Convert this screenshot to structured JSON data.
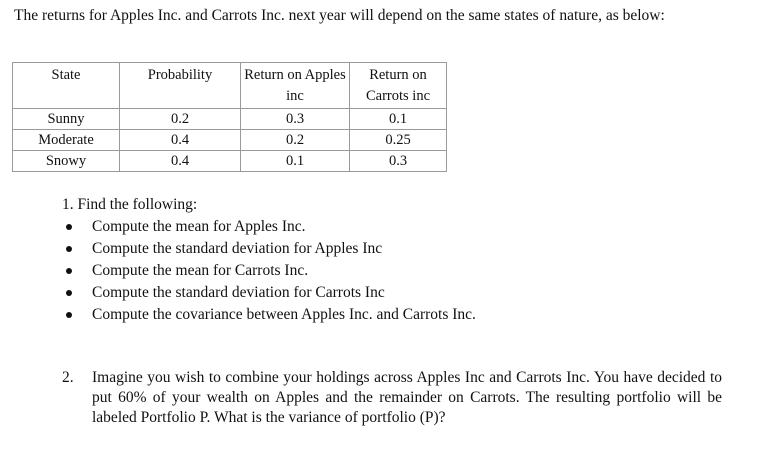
{
  "intro": "The returns for Apples Inc. and Carrots Inc. next year will depend on the same states of nature, as below:",
  "table": {
    "headers": [
      "State",
      "Probability",
      "Return on Apples inc",
      "Return on Carrots inc"
    ],
    "rows": [
      [
        "Sunny",
        "0.2",
        "0.3",
        "0.1"
      ],
      [
        "Moderate",
        "0.4",
        "0.2",
        "0.25"
      ],
      [
        "Snowy",
        "0.4",
        "0.1",
        "0.3"
      ]
    ]
  },
  "question1": {
    "title": "1. Find the following:",
    "items": [
      "Compute the mean for Apples Inc.",
      "Compute the standard deviation for Apples Inc",
      "Compute the mean for Carrots Inc.",
      "Compute the standard deviation for Carrots Inc",
      "Compute the covariance between Apples Inc. and Carrots Inc."
    ]
  },
  "question2": {
    "number": "2.",
    "text": "Imagine you wish to combine your holdings across Apples Inc and Carrots Inc. You have decided to put 60% of your wealth on Apples and the remainder on Carrots. The resulting portfolio will be labeled Portfolio P. What is the variance of portfolio (P)?"
  }
}
